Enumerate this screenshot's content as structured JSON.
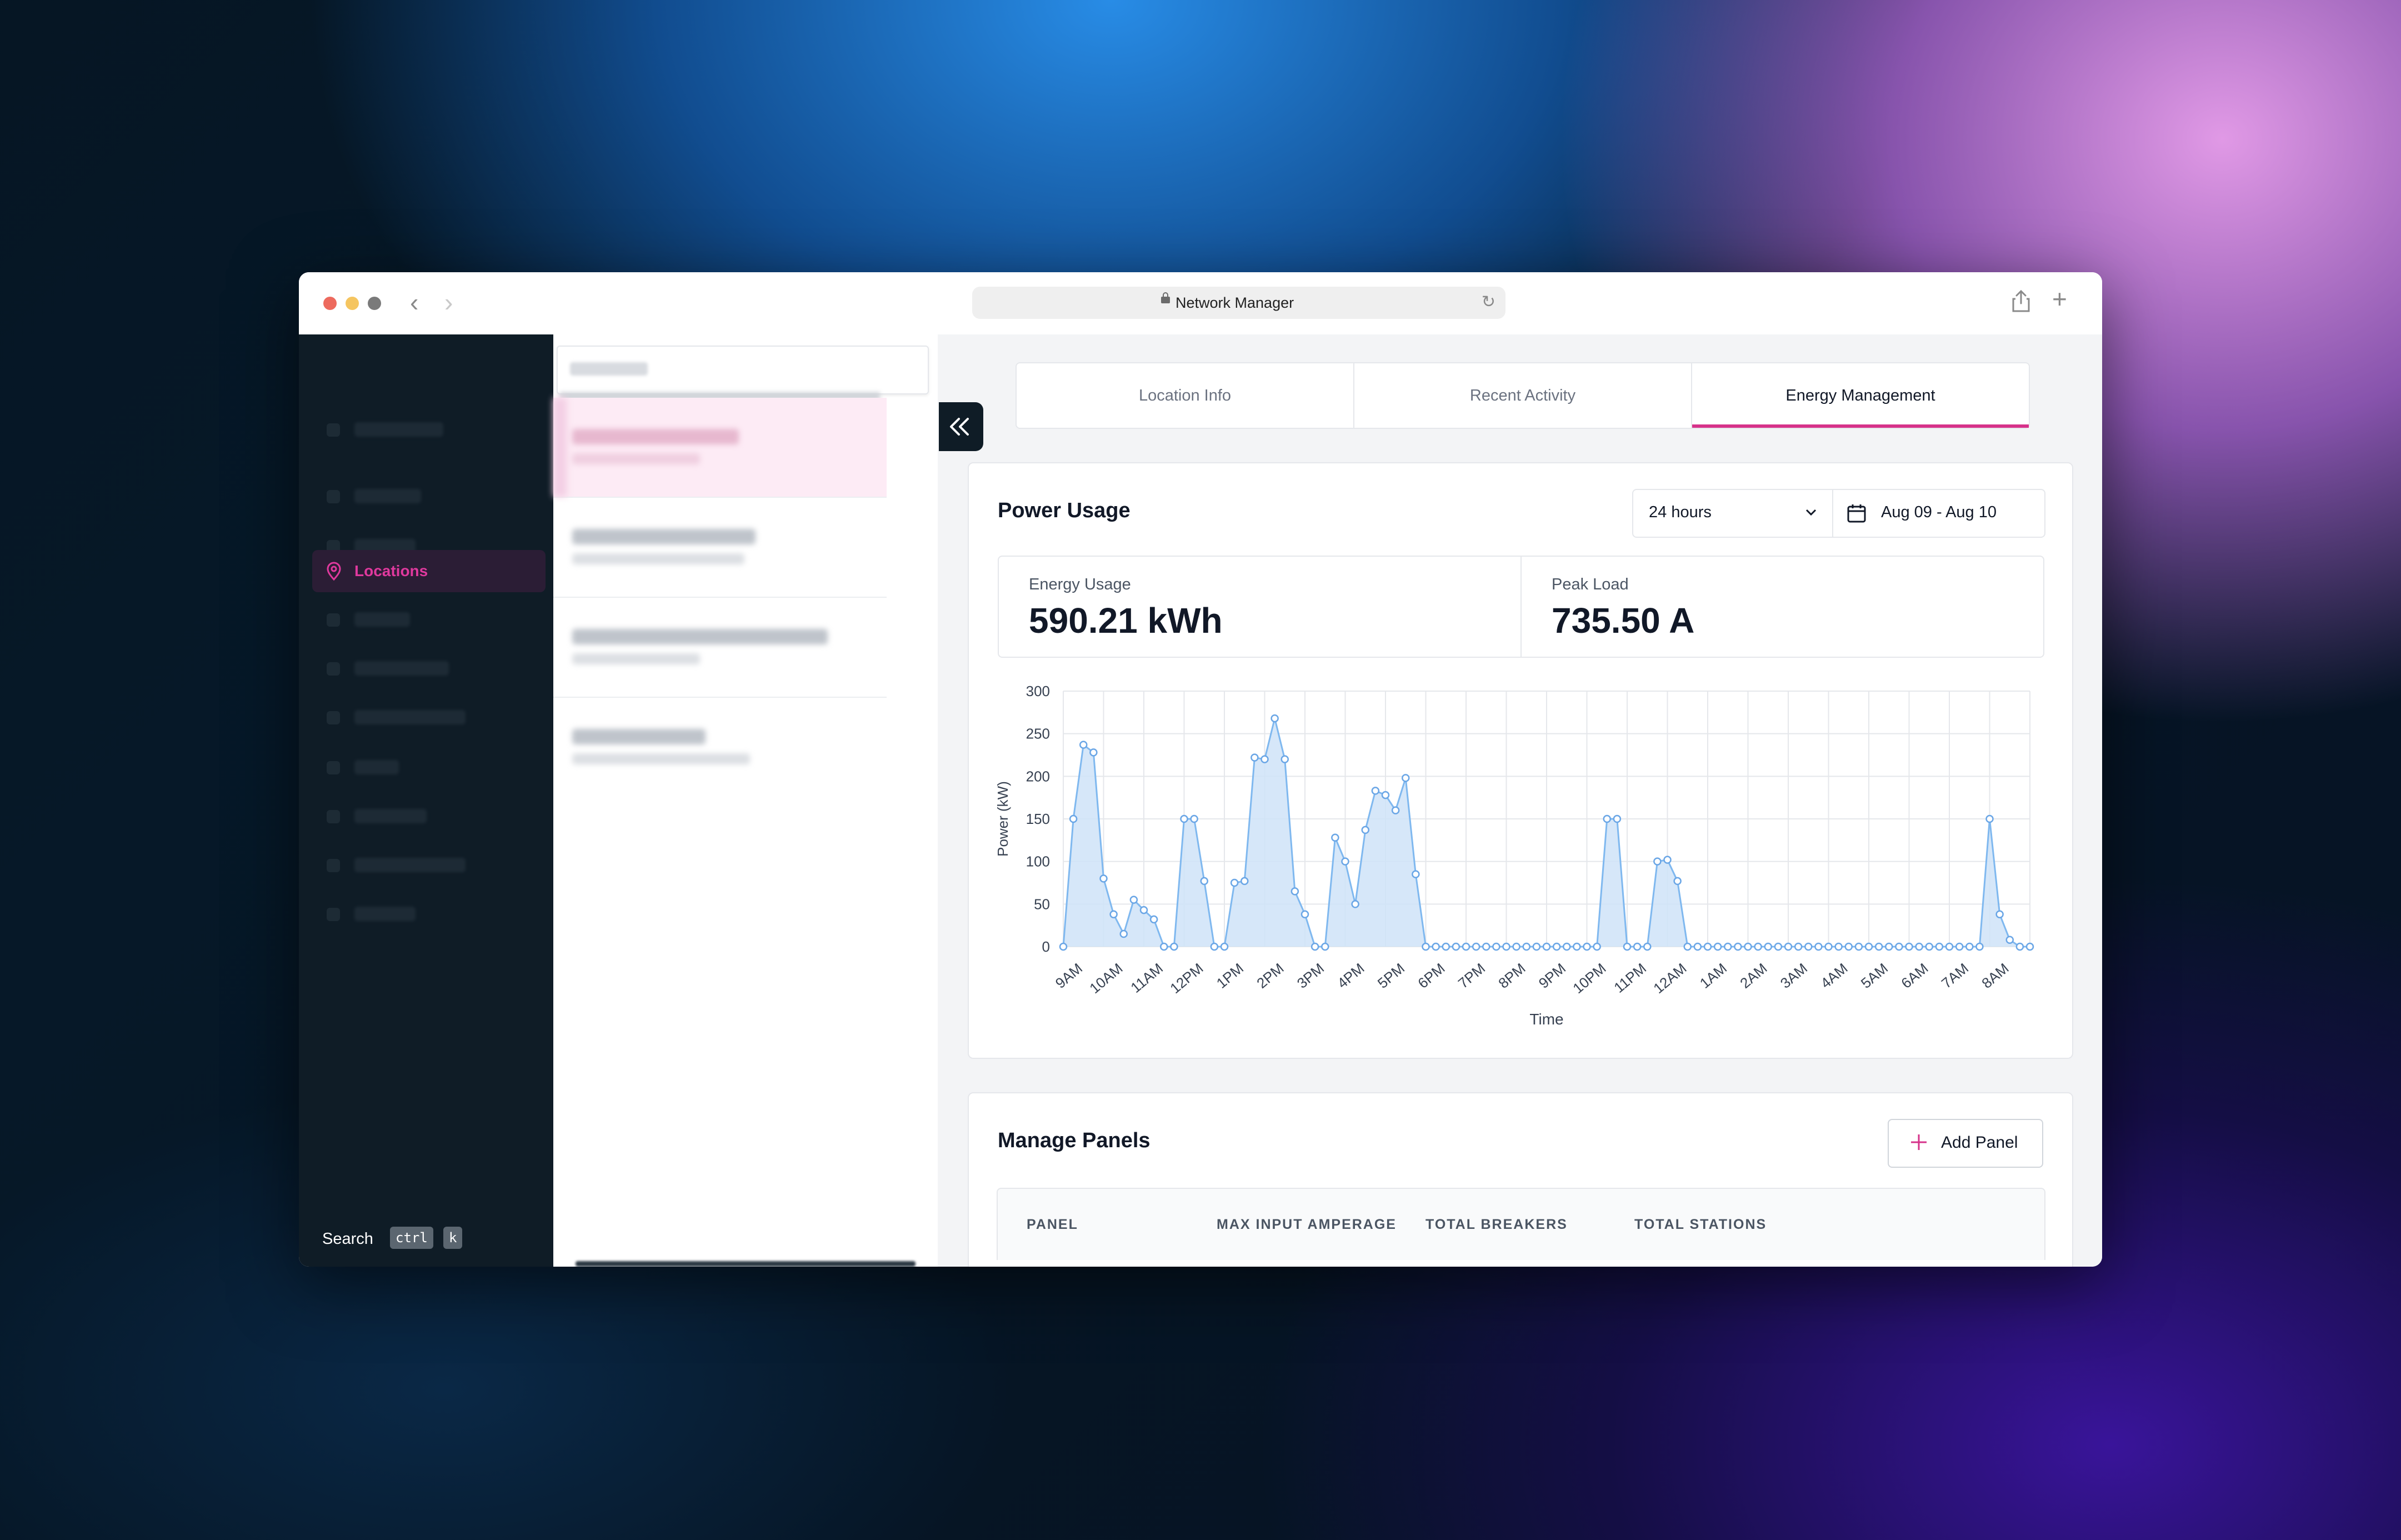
{
  "browser": {
    "title": "Network Manager"
  },
  "sidebar": {
    "active_item": "Locations",
    "search_label": "Search",
    "shortcut_keys": [
      "ctrl",
      "k"
    ]
  },
  "tabs": [
    {
      "label": "Location Info"
    },
    {
      "label": "Recent Activity"
    },
    {
      "label": "Energy Management"
    }
  ],
  "power_usage": {
    "title": "Power Usage",
    "range_select": "24 hours",
    "date_range": "Aug 09 - Aug 10",
    "stats": [
      {
        "label": "Energy Usage",
        "value": "590.21 kWh"
      },
      {
        "label": "Peak Load",
        "value": "735.50 A"
      }
    ]
  },
  "chart_data": {
    "type": "area",
    "xlabel": "Time",
    "ylabel": "Power (kW)",
    "ylim": [
      0,
      300
    ],
    "yticks": [
      0,
      50,
      100,
      150,
      200,
      250,
      300
    ],
    "xticks": [
      "9AM",
      "10AM",
      "11AM",
      "12PM",
      "1PM",
      "2PM",
      "3PM",
      "4PM",
      "5PM",
      "6PM",
      "7PM",
      "8PM",
      "9PM",
      "10PM",
      "11PM",
      "12AM",
      "1AM",
      "2AM",
      "3AM",
      "4AM",
      "5AM",
      "6AM",
      "7AM",
      "8AM"
    ],
    "points_per_hour": 4,
    "color": "#7fb8ef",
    "values": [
      0,
      150,
      237,
      228,
      80,
      38,
      15,
      55,
      43,
      32,
      0,
      0,
      150,
      150,
      77,
      0,
      0,
      75,
      77,
      222,
      220,
      268,
      220,
      65,
      38,
      0,
      0,
      128,
      100,
      50,
      137,
      183,
      178,
      160,
      198,
      85,
      0,
      0,
      0,
      0,
      0,
      0,
      0,
      0,
      0,
      0,
      0,
      0,
      0,
      0,
      0,
      0,
      0,
      0,
      150,
      150,
      0,
      0,
      0,
      100,
      102,
      77,
      0,
      0,
      0,
      0,
      0,
      0,
      0,
      0,
      0,
      0,
      0,
      0,
      0,
      0,
      0,
      0,
      0,
      0,
      0,
      0,
      0,
      0,
      0,
      0,
      0,
      0,
      0,
      0,
      0,
      0,
      150,
      38,
      8,
      0,
      0
    ]
  },
  "manage_panels": {
    "title": "Manage Panels",
    "add_label": "Add Panel",
    "columns": [
      "PANEL",
      "MAX INPUT AMPERAGE",
      "TOTAL BREAKERS",
      "TOTAL STATIONS"
    ]
  },
  "colors": {
    "accent": "#d6328a",
    "sidebar_bg": "#0f1c26",
    "series": "#7fb8ef"
  }
}
